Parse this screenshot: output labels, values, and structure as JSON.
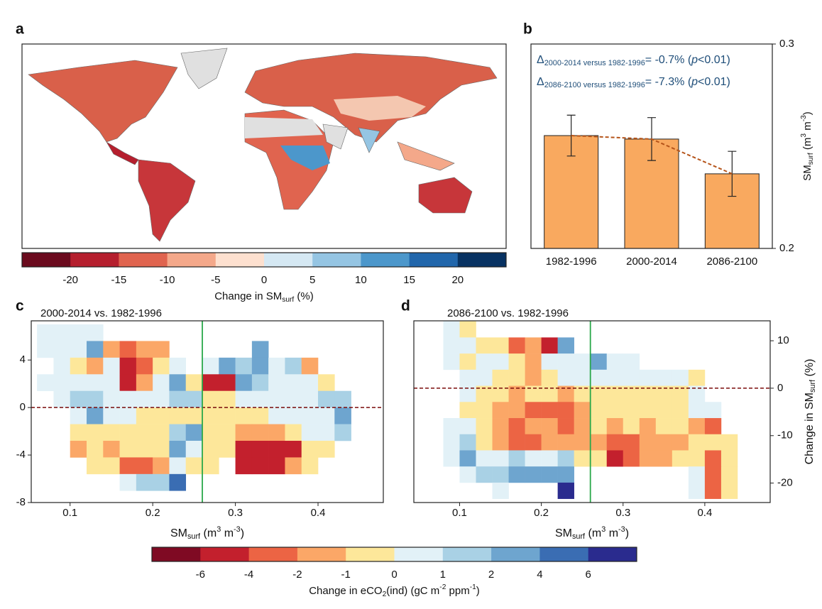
{
  "chart_data": [
    {
      "type": "map",
      "panel_label": "a",
      "colorbar": {
        "colors": [
          "#6b0b1e",
          "#b51f2e",
          "#e0644f",
          "#f4a88a",
          "#fde0cf",
          "#d5e8f3",
          "#95c5e3",
          "#4c97cb",
          "#2166ab",
          "#083262"
        ],
        "ticks": [
          -20,
          -15,
          -10,
          -5,
          0,
          5,
          10,
          15,
          20
        ],
        "label": [
          {
            "t": "Change in SM"
          },
          {
            "t": "surf",
            "s": "sub"
          },
          {
            "t": " (%)"
          }
        ]
      }
    },
    {
      "type": "bar",
      "panel_label": "b",
      "categories": [
        "1982-1996",
        "2000-2014",
        "2086-2100"
      ],
      "values": [
        0.2552,
        0.2535,
        0.2365
      ],
      "errors": [
        0.01,
        0.0105,
        0.011
      ],
      "color": "#f9a95f",
      "trend_color": "#b5541a",
      "ylim": [
        0.2,
        0.3
      ],
      "yticks": [
        0.2,
        0.3
      ],
      "ylabel": [
        {
          "t": "SM"
        },
        {
          "t": "surf",
          "s": "sub"
        },
        {
          "t": " (m"
        },
        {
          "t": "3",
          "s": "sup"
        },
        {
          "t": " m"
        },
        {
          "t": "-3",
          "s": "sup"
        },
        {
          "t": ")"
        }
      ],
      "annotations": [
        [
          {
            "t": "Δ"
          },
          {
            "t": "2000-2014 versus 1982-1996",
            "s": "sub"
          },
          {
            "t": "= -0.7% ("
          },
          {
            "t": "p",
            "s": "i"
          },
          {
            "t": "<0.01)"
          }
        ],
        [
          {
            "t": "Δ"
          },
          {
            "t": "2086-2100 versus 1982-1996",
            "s": "sub"
          },
          {
            "t": "= -7.3% ("
          },
          {
            "t": "p",
            "s": "i"
          },
          {
            "t": "<0.01)"
          }
        ]
      ]
    },
    {
      "type": "heatmap",
      "panel_label": "c",
      "title": "2000-2014 vs. 1982-1996",
      "x": [
        0.07,
        0.09,
        0.11,
        0.13,
        0.15,
        0.17,
        0.19,
        0.21,
        0.23,
        0.25,
        0.27,
        0.29,
        0.31,
        0.33,
        0.35,
        0.37,
        0.39,
        0.41,
        0.43
      ],
      "y": [
        6.3,
        4.9,
        3.5,
        2.1,
        0.7,
        -0.7,
        -2.1,
        -3.5,
        -4.9,
        -6.3
      ],
      "values": [
        [
          0.5,
          0.5,
          0.5,
          0.5,
          null,
          null,
          null,
          null,
          null,
          null,
          null,
          null,
          null,
          null,
          null,
          null,
          null,
          null,
          null
        ],
        [
          0.5,
          0.5,
          0.5,
          3,
          -1.5,
          -3,
          -1.5,
          -1.5,
          null,
          null,
          null,
          null,
          null,
          3,
          null,
          null,
          null,
          null,
          null
        ],
        [
          null,
          0.5,
          -0.5,
          -1.5,
          0.5,
          -5,
          -3,
          -0.5,
          0.5,
          null,
          0.5,
          3,
          1.5,
          3,
          0.5,
          1.5,
          -1.5,
          null,
          null
        ],
        [
          0.5,
          0.5,
          0.5,
          0.5,
          0.5,
          -5,
          -1.5,
          0.5,
          3,
          -0.5,
          -5,
          -5,
          3,
          1.5,
          0.5,
          0.5,
          0.5,
          -0.5,
          null
        ],
        [
          null,
          0.5,
          1.5,
          1.5,
          0.5,
          0.5,
          0.5,
          0.5,
          1.5,
          1.5,
          -0.5,
          -0.5,
          0.5,
          0.5,
          0.5,
          0.5,
          0.5,
          1.5,
          1.5
        ],
        [
          null,
          null,
          0.5,
          3,
          0.5,
          0.5,
          -0.5,
          -0.5,
          -0.5,
          -0.5,
          -0.5,
          -0.5,
          -0.5,
          -0.5,
          0.5,
          0.5,
          0.5,
          0.5,
          3
        ],
        [
          null,
          null,
          -0.5,
          -0.5,
          -0.5,
          -0.5,
          -0.5,
          -0.5,
          1.5,
          3,
          -0.5,
          -0.5,
          -1.5,
          -1.5,
          -1.5,
          -0.5,
          0.5,
          0.5,
          1.5
        ],
        [
          null,
          null,
          -1.5,
          -0.5,
          -1.5,
          -0.5,
          -0.5,
          -0.5,
          3,
          0.5,
          -0.5,
          -0.5,
          -5,
          -5,
          -5,
          -5,
          -0.5,
          -0.5,
          null
        ],
        [
          null,
          null,
          null,
          -0.5,
          -0.5,
          -3,
          -3,
          -1.5,
          0.5,
          -0.5,
          -0.5,
          null,
          -5,
          -5,
          -5,
          -1.5,
          -0.5,
          null,
          null
        ],
        [
          null,
          null,
          null,
          null,
          null,
          0.5,
          1.5,
          1.5,
          5,
          null,
          null,
          null,
          null,
          null,
          null,
          null,
          null,
          null,
          null
        ]
      ],
      "xlim": [
        0.053,
        0.479
      ],
      "ylim": [
        -8,
        7.3
      ],
      "xticks": [
        0.1,
        0.2,
        0.3,
        0.4
      ],
      "yticks": [
        -8,
        -4,
        0,
        4
      ],
      "vline": 0.26,
      "hline": 0,
      "yaxis_side": "left",
      "xlabel": [
        {
          "t": "SM"
        },
        {
          "t": "surf",
          "s": "sub"
        },
        {
          "t": " (m"
        },
        {
          "t": "3",
          "s": "sup"
        },
        {
          "t": " m"
        },
        {
          "t": "-3",
          "s": "sup"
        },
        {
          "t": ")"
        }
      ]
    },
    {
      "type": "heatmap",
      "panel_label": "d",
      "title": "2086-2100 vs. 1982-1996",
      "x": [
        0.07,
        0.09,
        0.11,
        0.13,
        0.15,
        0.17,
        0.19,
        0.21,
        0.23,
        0.25,
        0.27,
        0.29,
        0.31,
        0.33,
        0.35,
        0.37,
        0.39,
        0.41,
        0.43
      ],
      "y": [
        12.4,
        9.0,
        5.6,
        2.2,
        -1.2,
        -4.6,
        -8.0,
        -11.4,
        -14.8,
        -18.2,
        -21.6
      ],
      "values": [
        [
          null,
          0.5,
          -0.5,
          null,
          null,
          null,
          null,
          null,
          null,
          null,
          null,
          null,
          null,
          null,
          null,
          null,
          null,
          null,
          null
        ],
        [
          null,
          0.5,
          0.5,
          -0.5,
          -0.5,
          -3,
          -1.5,
          -5,
          3,
          null,
          null,
          null,
          null,
          null,
          null,
          null,
          null,
          null,
          null
        ],
        [
          null,
          0.5,
          -0.5,
          0.5,
          0.5,
          -0.5,
          -1.5,
          0.5,
          0.5,
          0.5,
          3,
          0.5,
          0.5,
          null,
          null,
          null,
          null,
          null,
          null
        ],
        [
          null,
          null,
          0.5,
          0.5,
          -0.5,
          -0.5,
          -1.5,
          -0.5,
          0.5,
          0.5,
          0.5,
          0.5,
          0.5,
          0.5,
          0.5,
          0.5,
          -0.5,
          null,
          null
        ],
        [
          null,
          null,
          0.5,
          -0.5,
          -0.5,
          -1.5,
          -0.5,
          -0.5,
          -1.5,
          -0.5,
          -0.5,
          -0.5,
          -0.5,
          -0.5,
          -0.5,
          -0.5,
          0.5,
          null,
          null
        ],
        [
          null,
          null,
          -0.5,
          -0.5,
          -1.5,
          -1.5,
          -3,
          -3,
          -3,
          -1.5,
          -0.5,
          -0.5,
          -0.5,
          -0.5,
          -0.5,
          -0.5,
          0.5,
          0.5,
          null
        ],
        [
          null,
          0.5,
          0.5,
          -0.5,
          -1.5,
          -3,
          -1.5,
          -1.5,
          -3,
          -1.5,
          -0.5,
          -1.5,
          -0.5,
          -1.5,
          -0.5,
          -0.5,
          -1.5,
          -3,
          null
        ],
        [
          null,
          0.5,
          1.5,
          -0.5,
          -1.5,
          -3,
          -3,
          -1.5,
          -1.5,
          -1.5,
          -1.5,
          -3,
          -3,
          -1.5,
          -1.5,
          -1.5,
          -0.5,
          -0.5,
          -0.5
        ],
        [
          null,
          0.5,
          3,
          0.5,
          0.5,
          1.5,
          0.5,
          0.5,
          1.5,
          -0.5,
          -0.5,
          -5,
          -3,
          -1.5,
          -1.5,
          -0.5,
          -0.5,
          -3,
          -0.5
        ],
        [
          null,
          null,
          0.5,
          1.5,
          1.5,
          3,
          3,
          3,
          3,
          null,
          null,
          null,
          null,
          null,
          null,
          null,
          0.5,
          -3,
          -0.5
        ],
        [
          null,
          null,
          null,
          null,
          0.5,
          null,
          null,
          null,
          7,
          null,
          null,
          null,
          null,
          null,
          null,
          null,
          0.5,
          -3,
          -0.5
        ]
      ],
      "xlim": [
        0.044,
        0.48
      ],
      "ylim": [
        -24.1,
        14.2
      ],
      "xticks": [
        0.1,
        0.2,
        0.3,
        0.4
      ],
      "yticks": [
        -20,
        -10,
        0,
        10
      ],
      "vline": 0.26,
      "hline": 0,
      "yaxis_side": "right",
      "xlabel": [
        {
          "t": "SM"
        },
        {
          "t": "surf",
          "s": "sub"
        },
        {
          "t": " (m"
        },
        {
          "t": "3",
          "s": "sup"
        },
        {
          "t": " m"
        },
        {
          "t": "-3",
          "s": "sup"
        },
        {
          "t": ")"
        }
      ],
      "ylabel": [
        {
          "t": "Change in SM"
        },
        {
          "t": "surf",
          "s": "sub"
        },
        {
          "t": " (%)"
        }
      ]
    },
    {
      "type": "colorbar",
      "colors": [
        "#7f0a23",
        "#c3202d",
        "#ec6444",
        "#fba767",
        "#fde79a",
        "#e2f1f7",
        "#a9d1e5",
        "#6ea5cf",
        "#3a6db3",
        "#2a2b8e"
      ],
      "ticks": [
        -6,
        -4,
        -2,
        -1,
        0,
        1,
        2,
        4,
        6
      ],
      "label": [
        {
          "t": "Change in eCO"
        },
        {
          "t": "2",
          "s": "sub"
        },
        {
          "t": "(ind) (gC m"
        },
        {
          "t": "-2",
          "s": "sup"
        },
        {
          "t": " ppm"
        },
        {
          "t": "-1",
          "s": "sup"
        },
        {
          "t": ")"
        }
      ]
    }
  ]
}
